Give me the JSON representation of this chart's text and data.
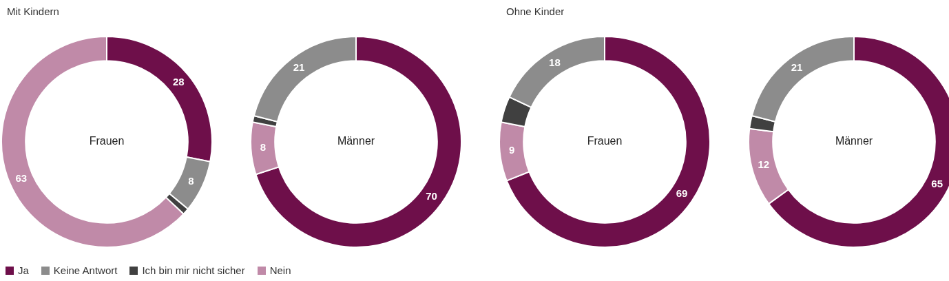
{
  "chart_data": [
    {
      "type": "donut",
      "title": "Mit Kindern",
      "annotations": [
        "Frauen"
      ],
      "categories": [
        "Ja",
        "Keine Antwort",
        "Ich bin mir nicht sicher",
        "Nein"
      ],
      "values": [
        28,
        8,
        1,
        63
      ],
      "colors": [
        "#6e0f4a",
        "#8c8c8c",
        "#404040",
        "#c08aa8"
      ],
      "value_labels": [
        "28",
        "8",
        null,
        "63"
      ],
      "legend": "bottom"
    },
    {
      "type": "donut",
      "annotations": [
        "Männer"
      ],
      "categories": [
        null,
        null,
        null,
        null
      ],
      "values": [
        70,
        8,
        1,
        21
      ],
      "colors": [
        "#6e0f4a",
        "#c08aa8",
        "#404040",
        "#8c8c8c"
      ],
      "value_labels": [
        "70",
        "8",
        null,
        "21"
      ]
    },
    {
      "type": "donut",
      "title": "Ohne Kinder",
      "annotations": [
        "Frauen"
      ],
      "categories": [
        null,
        null,
        null,
        null
      ],
      "values": [
        69,
        9,
        4,
        18
      ],
      "colors": [
        "#6e0f4a",
        "#c08aa8",
        "#404040",
        "#8c8c8c"
      ],
      "value_labels": [
        "69",
        "9",
        null,
        "18"
      ]
    },
    {
      "type": "donut",
      "annotations": [
        "Männer"
      ],
      "categories": [
        null,
        null,
        null,
        null
      ],
      "values": [
        65,
        12,
        2,
        21
      ],
      "colors": [
        "#6e0f4a",
        "#c08aa8",
        "#404040",
        "#8c8c8c"
      ],
      "value_labels": [
        "65",
        "12",
        null,
        "21"
      ]
    }
  ]
}
